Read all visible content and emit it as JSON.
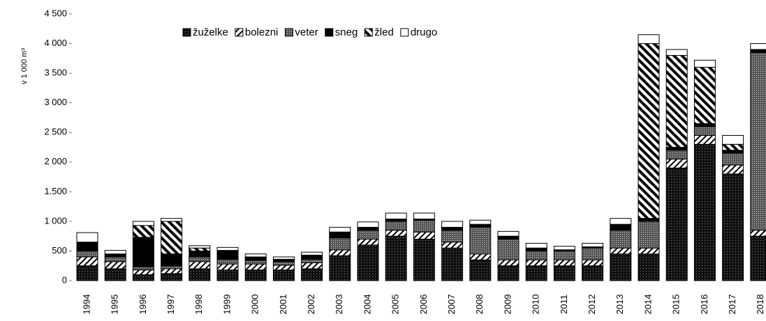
{
  "chart_data": {
    "type": "stacked_bar",
    "y_label": "v 1 000 m³",
    "categories": [
      "1994",
      "1995",
      "1996",
      "1997",
      "1998",
      "1999",
      "2000",
      "2001",
      "2002",
      "2003",
      "2004",
      "2005",
      "2006",
      "2007",
      "2008",
      "2009",
      "2010",
      "2011",
      "2012",
      "2013",
      "2014",
      "2015",
      "2016",
      "2017",
      "2018"
    ],
    "series": [
      {
        "name": "žuželke",
        "color": "#111111",
        "values": [
          250,
          200,
          100,
          120,
          200,
          180,
          180,
          180,
          200,
          420,
          600,
          750,
          700,
          550,
          350,
          250,
          250,
          250,
          250,
          450,
          450,
          1900,
          2300,
          1800,
          750
        ]
      },
      {
        "name": "bolezni",
        "color": "#ffffff",
        "values": [
          150,
          120,
          80,
          80,
          120,
          100,
          100,
          80,
          100,
          100,
          100,
          100,
          120,
          100,
          100,
          100,
          100,
          100,
          100,
          100,
          100,
          150,
          150,
          150,
          100
        ]
      },
      {
        "name": "veter",
        "color": "#555555",
        "values": [
          100,
          80,
          50,
          50,
          80,
          80,
          60,
          60,
          60,
          200,
          150,
          150,
          200,
          200,
          450,
          350,
          150,
          150,
          200,
          300,
          450,
          150,
          150,
          200,
          3000
        ]
      },
      {
        "name": "sneg",
        "color": "#000000",
        "values": [
          150,
          50,
          500,
          200,
          100,
          150,
          60,
          40,
          70,
          100,
          50,
          40,
          20,
          50,
          50,
          50,
          50,
          20,
          20,
          100,
          50,
          50,
          50,
          50,
          50
        ]
      },
      {
        "name": "žled",
        "color": "#ffffff",
        "values": [
          0,
          0,
          200,
          550,
          50,
          0,
          0,
          0,
          0,
          0,
          0,
          0,
          0,
          0,
          0,
          0,
          0,
          0,
          0,
          0,
          2950,
          1550,
          950,
          100,
          0
        ]
      },
      {
        "name": "drugo",
        "color": "#ffffff",
        "values": [
          160,
          60,
          70,
          50,
          40,
          50,
          50,
          40,
          50,
          80,
          90,
          100,
          100,
          100,
          70,
          80,
          80,
          60,
          60,
          100,
          150,
          100,
          120,
          150,
          100
        ]
      }
    ],
    "ylim": [
      0,
      4500
    ],
    "yticks": [
      0,
      500,
      {
        "value": 1000,
        "label": "1 000"
      },
      {
        "value": 1500,
        "label": "1.500"
      },
      {
        "value": 2000,
        "label": "2 000"
      },
      {
        "value": 2500,
        "label": "2 500"
      },
      {
        "value": 3000,
        "label": "3 000"
      },
      {
        "value": 3500,
        "label": "3 500"
      },
      {
        "value": 4000,
        "label": "4 000"
      },
      {
        "value": 4500,
        "label": "4 500"
      }
    ]
  }
}
